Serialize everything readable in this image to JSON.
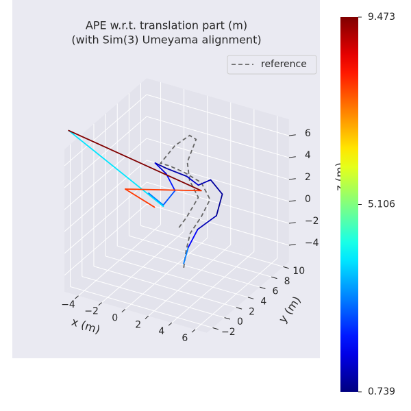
{
  "chart_data": {
    "type": "line3d",
    "title": "APE w.r.t. translation part (m)",
    "subtitle": "(with Sim(3) Umeyama alignment)",
    "x_label": "x (m)",
    "y_label": "y (m)",
    "z_label": "z (m)",
    "xlim": [
      -5.2,
      7
    ],
    "ylim": [
      -3,
      11
    ],
    "zlim": [
      -5.5,
      7.5
    ],
    "xticks": [
      {
        "value": -4,
        "label": "−4"
      },
      {
        "value": -2,
        "label": "−2"
      },
      0,
      2,
      4,
      6
    ],
    "yticks": [
      {
        "value": -2,
        "label": "−2"
      },
      0,
      2,
      4,
      6,
      8,
      10
    ],
    "zticks": [
      {
        "value": -4,
        "label": "−4"
      },
      {
        "value": -2,
        "label": "−2"
      },
      0,
      2,
      4,
      6
    ],
    "grid": true,
    "legend": "upper right",
    "colormap": "jet",
    "clim": [
      0.739,
      9.473
    ],
    "cticks": [
      0.739,
      5.106,
      9.473
    ],
    "series": [
      {
        "name": "reference",
        "color": "#666666",
        "dash": true,
        "x": [
          1.5,
          1.6,
          1.8,
          2.5,
          3,
          2,
          0.5,
          -0.5,
          -1,
          0,
          1,
          1.3,
          0.8,
          1.5,
          2.5,
          2,
          1.5
        ],
        "y": [
          4,
          4.2,
          4.5,
          5,
          5.5,
          6,
          6,
          5.5,
          5,
          5.5,
          6,
          6.5,
          6,
          5,
          4.5,
          3.5,
          3
        ],
        "z": [
          -4.5,
          -3,
          -1.5,
          0,
          1.5,
          2.5,
          3,
          3.5,
          3.8,
          5.5,
          6.5,
          6,
          4,
          3,
          2,
          0.5,
          -0.5
        ]
      },
      {
        "x": [
          2,
          2.3,
          2.8,
          3.8,
          3.8,
          2.8,
          2,
          1,
          -0.5,
          -1.2,
          -0.5,
          0.5,
          0,
          -1,
          0.5,
          -7.3,
          3,
          -2,
          0
        ],
        "y": [
          3,
          3.2,
          3.8,
          5,
          6,
          6,
          5.5,
          5.5,
          5,
          4.5,
          5,
          4.5,
          3.5,
          3,
          2.5,
          1.9,
          4,
          1,
          2
        ],
        "z": [
          -3.5,
          -2,
          -0.5,
          0.5,
          2,
          3,
          2.5,
          3,
          3.5,
          4,
          3,
          2,
          1,
          2,
          1.5,
          6.3,
          3,
          3,
          1.5
        ],
        "error": [
          3.2,
          2.9,
          1.8,
          1.2,
          0.9,
          1.0,
          1.2,
          1.4,
          1.1,
          1.0,
          1.5,
          2.0,
          2.5,
          3.0,
          2.8,
          3.8,
          9.473,
          7.9,
          7.9
        ]
      }
    ]
  }
}
